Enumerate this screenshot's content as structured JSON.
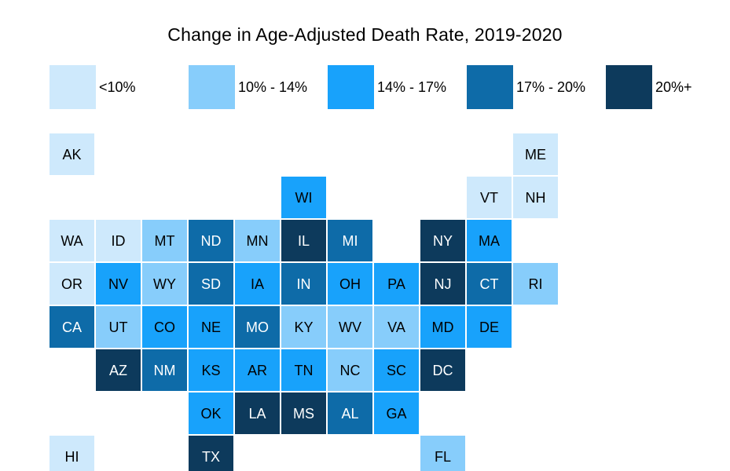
{
  "title": "Change in Age-Adjusted Death Rate, 2019-2020",
  "legend": [
    {
      "label": "<10%",
      "color": "#CEE9FC"
    },
    {
      "label": "10% - 14%",
      "color": "#87CDFB"
    },
    {
      "label": "14% - 17%",
      "color": "#18A2FB"
    },
    {
      "label": "17% - 20%",
      "color": "#0E6BA8"
    },
    {
      "label": "20%+",
      "color": "#0D3A5C"
    }
  ],
  "chart_data": {
    "type": "heatmap",
    "subtype": "us-state-tile-cartogram",
    "title": "Change in Age-Adjusted Death Rate, 2019-2020",
    "legend_position": "top",
    "legend_bins": [
      "<10%",
      "10% - 14%",
      "14% - 17%",
      "17% - 20%",
      "20%+"
    ],
    "bin_colors": [
      "#CEE9FC",
      "#87CDFB",
      "#18A2FB",
      "#0E6BA8",
      "#0D3A5C"
    ],
    "bin_text_colors": [
      "#000000",
      "#000000",
      "#000000",
      "#FFFFFF",
      "#FFFFFF"
    ],
    "states": [
      {
        "abbr": "AK",
        "row": 1,
        "col": 1,
        "bin": "<10%"
      },
      {
        "abbr": "ME",
        "row": 1,
        "col": 11,
        "bin": "<10%"
      },
      {
        "abbr": "WI",
        "row": 2,
        "col": 6,
        "bin": "14% - 17%"
      },
      {
        "abbr": "VT",
        "row": 2,
        "col": 10,
        "bin": "<10%"
      },
      {
        "abbr": "NH",
        "row": 2,
        "col": 11,
        "bin": "<10%"
      },
      {
        "abbr": "WA",
        "row": 3,
        "col": 1,
        "bin": "<10%"
      },
      {
        "abbr": "ID",
        "row": 3,
        "col": 2,
        "bin": "<10%"
      },
      {
        "abbr": "MT",
        "row": 3,
        "col": 3,
        "bin": "10% - 14%"
      },
      {
        "abbr": "ND",
        "row": 3,
        "col": 4,
        "bin": "17% - 20%"
      },
      {
        "abbr": "MN",
        "row": 3,
        "col": 5,
        "bin": "10% - 14%"
      },
      {
        "abbr": "IL",
        "row": 3,
        "col": 6,
        "bin": "20%+"
      },
      {
        "abbr": "MI",
        "row": 3,
        "col": 7,
        "bin": "17% - 20%"
      },
      {
        "abbr": "NY",
        "row": 3,
        "col": 9,
        "bin": "20%+"
      },
      {
        "abbr": "MA",
        "row": 3,
        "col": 10,
        "bin": "14% - 17%"
      },
      {
        "abbr": "OR",
        "row": 4,
        "col": 1,
        "bin": "<10%"
      },
      {
        "abbr": "NV",
        "row": 4,
        "col": 2,
        "bin": "14% - 17%"
      },
      {
        "abbr": "WY",
        "row": 4,
        "col": 3,
        "bin": "10% - 14%"
      },
      {
        "abbr": "SD",
        "row": 4,
        "col": 4,
        "bin": "17% - 20%"
      },
      {
        "abbr": "IA",
        "row": 4,
        "col": 5,
        "bin": "14% - 17%"
      },
      {
        "abbr": "IN",
        "row": 4,
        "col": 6,
        "bin": "17% - 20%"
      },
      {
        "abbr": "OH",
        "row": 4,
        "col": 7,
        "bin": "14% - 17%"
      },
      {
        "abbr": "PA",
        "row": 4,
        "col": 8,
        "bin": "14% - 17%"
      },
      {
        "abbr": "NJ",
        "row": 4,
        "col": 9,
        "bin": "20%+"
      },
      {
        "abbr": "CT",
        "row": 4,
        "col": 10,
        "bin": "17% - 20%"
      },
      {
        "abbr": "RI",
        "row": 4,
        "col": 11,
        "bin": "10% - 14%"
      },
      {
        "abbr": "CA",
        "row": 5,
        "col": 1,
        "bin": "17% - 20%"
      },
      {
        "abbr": "UT",
        "row": 5,
        "col": 2,
        "bin": "10% - 14%"
      },
      {
        "abbr": "CO",
        "row": 5,
        "col": 3,
        "bin": "14% - 17%"
      },
      {
        "abbr": "NE",
        "row": 5,
        "col": 4,
        "bin": "14% - 17%"
      },
      {
        "abbr": "MO",
        "row": 5,
        "col": 5,
        "bin": "17% - 20%"
      },
      {
        "abbr": "KY",
        "row": 5,
        "col": 6,
        "bin": "10% - 14%"
      },
      {
        "abbr": "WV",
        "row": 5,
        "col": 7,
        "bin": "10% - 14%"
      },
      {
        "abbr": "VA",
        "row": 5,
        "col": 8,
        "bin": "10% - 14%"
      },
      {
        "abbr": "MD",
        "row": 5,
        "col": 9,
        "bin": "14% - 17%"
      },
      {
        "abbr": "DE",
        "row": 5,
        "col": 10,
        "bin": "14% - 17%"
      },
      {
        "abbr": "AZ",
        "row": 6,
        "col": 2,
        "bin": "20%+"
      },
      {
        "abbr": "NM",
        "row": 6,
        "col": 3,
        "bin": "17% - 20%"
      },
      {
        "abbr": "KS",
        "row": 6,
        "col": 4,
        "bin": "14% - 17%"
      },
      {
        "abbr": "AR",
        "row": 6,
        "col": 5,
        "bin": "14% - 17%"
      },
      {
        "abbr": "TN",
        "row": 6,
        "col": 6,
        "bin": "14% - 17%"
      },
      {
        "abbr": "NC",
        "row": 6,
        "col": 7,
        "bin": "10% - 14%"
      },
      {
        "abbr": "SC",
        "row": 6,
        "col": 8,
        "bin": "14% - 17%"
      },
      {
        "abbr": "DC",
        "row": 6,
        "col": 9,
        "bin": "20%+"
      },
      {
        "abbr": "OK",
        "row": 7,
        "col": 4,
        "bin": "14% - 17%"
      },
      {
        "abbr": "LA",
        "row": 7,
        "col": 5,
        "bin": "20%+"
      },
      {
        "abbr": "MS",
        "row": 7,
        "col": 6,
        "bin": "20%+"
      },
      {
        "abbr": "AL",
        "row": 7,
        "col": 7,
        "bin": "17% - 20%"
      },
      {
        "abbr": "GA",
        "row": 7,
        "col": 8,
        "bin": "14% - 17%"
      },
      {
        "abbr": "HI",
        "row": 8,
        "col": 1,
        "bin": "<10%"
      },
      {
        "abbr": "TX",
        "row": 8,
        "col": 4,
        "bin": "20%+"
      },
      {
        "abbr": "FL",
        "row": 8,
        "col": 9,
        "bin": "10% - 14%"
      }
    ]
  }
}
